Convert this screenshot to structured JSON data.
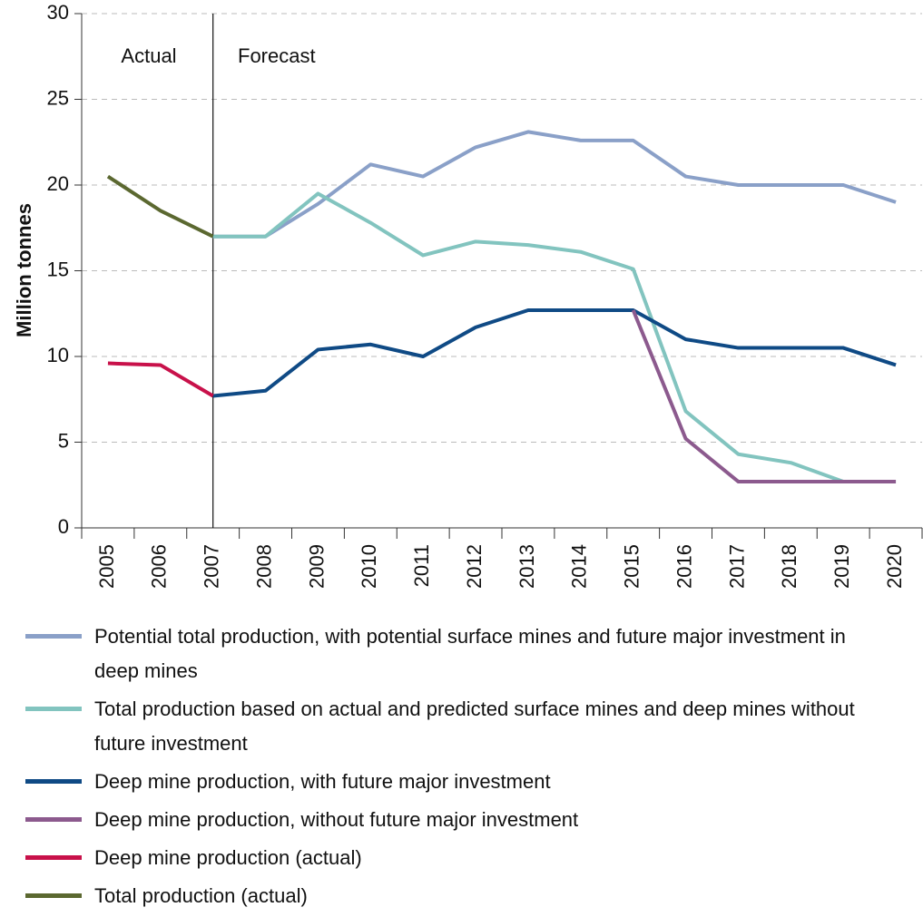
{
  "chart_data": {
    "type": "line",
    "y_label": "Million tonnes",
    "annotations": [
      "Actual",
      "Forecast"
    ],
    "categories": [
      "2005",
      "2006",
      "2007",
      "2008",
      "2009",
      "2010",
      "2011",
      "2012",
      "2013",
      "2014",
      "2015",
      "2016",
      "2017",
      "2018",
      "2019",
      "2020"
    ],
    "series": [
      {
        "name": "Potential total production, with potential surface mines and future major investment in deep mines",
        "color": "#8aa0c8",
        "values": [
          null,
          null,
          17,
          17,
          18.9,
          21.2,
          20.5,
          22.2,
          23.1,
          22.6,
          22.6,
          20.5,
          20,
          20,
          20,
          19
        ]
      },
      {
        "name": "Total production based on actual and predicted surface mines and deep mines without future investment",
        "color": "#82c4bf",
        "values": [
          null,
          null,
          17,
          17,
          19.5,
          17.8,
          15.9,
          16.7,
          16.5,
          16.1,
          15.1,
          6.8,
          4.3,
          3.8,
          2.7,
          2.7
        ]
      },
      {
        "name": "Deep mine production, with future major investment",
        "color": "#0f4a85",
        "values": [
          null,
          null,
          7.7,
          8,
          10.4,
          10.7,
          10,
          11.7,
          12.7,
          12.7,
          12.7,
          11,
          10.5,
          10.5,
          10.5,
          9.5
        ]
      },
      {
        "name": "Deep mine production, without future major investment",
        "color": "#8c5a8e",
        "values": [
          null,
          null,
          null,
          null,
          null,
          null,
          null,
          null,
          null,
          null,
          12.7,
          5.2,
          2.7,
          2.7,
          2.7,
          2.7
        ]
      },
      {
        "name": "Deep mine production (actual)",
        "color": "#c8114a",
        "values": [
          9.6,
          9.5,
          7.7,
          null,
          null,
          null,
          null,
          null,
          null,
          null,
          null,
          null,
          null,
          null,
          null,
          null
        ]
      },
      {
        "name": "Total production (actual)",
        "color": "#5b6830",
        "values": [
          20.5,
          18.5,
          17,
          null,
          null,
          null,
          null,
          null,
          null,
          null,
          null,
          null,
          null,
          null,
          null,
          null
        ]
      }
    ],
    "ylim": [
      0,
      30
    ],
    "yticks": [
      0,
      5,
      10,
      15,
      20,
      25,
      30
    ],
    "grid": true
  }
}
